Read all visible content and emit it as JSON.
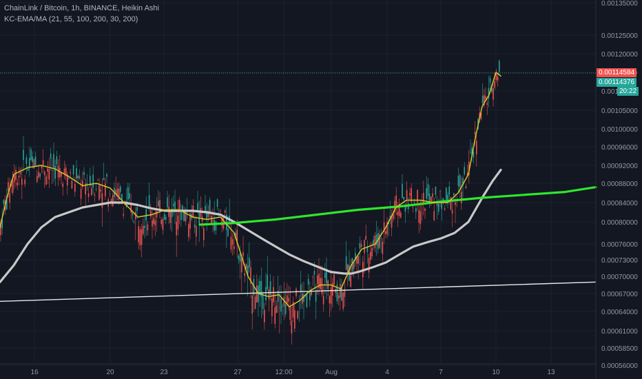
{
  "legend": {
    "title": "ChainLink / Bitcoin, 1h, BINANCE, Heikin Ashi",
    "indicator": "KC-EMA/MA (21, 55, 100, 200, 30, 200)"
  },
  "price_labels": {
    "last_price": "0.00114584",
    "indicator_value": "0.00114376",
    "countdown": "20:22"
  },
  "colors": {
    "background": "#131722",
    "grid": "#1e2230",
    "up_candle": "#26a69a",
    "down_candle": "#ef5350",
    "ema_fast": "#d4c42b",
    "ma_100": "#c8c8c8",
    "ma_200": "#2ee62e",
    "trendline": "#e8e8e8",
    "last_price_badge": "#ef5350",
    "indicator_badge": "#26a69a"
  },
  "chart_data": {
    "type": "candlestick",
    "symbol": "ChainLink / Bitcoin",
    "interval": "1h",
    "exchange": "BINANCE",
    "style": "Heikin Ashi",
    "y_ticks": [
      "0.00135000",
      "0.00125000",
      "0.00120000",
      "0.00115000",
      "0.00110000",
      "0.00105000",
      "0.00100000",
      "0.00096000",
      "0.00092000",
      "0.00088000",
      "0.00084000",
      "0.00080000",
      "0.00076000",
      "0.00073000",
      "0.00070000",
      "0.00067000",
      "0.00064000",
      "0.00061000",
      "0.00058500",
      "0.00056000"
    ],
    "x_ticks": [
      "16",
      "20",
      "23",
      "27",
      "12:00",
      "Aug",
      "4",
      "7",
      "10",
      "13"
    ],
    "price_range": [
      "0.00056",
      "0.00135"
    ],
    "grid": true,
    "ema_fast": [
      [
        0,
        0.00079
      ],
      [
        10,
        0.00085
      ],
      [
        20,
        0.0009
      ],
      [
        40,
        0.000915
      ],
      [
        60,
        0.00092
      ],
      [
        80,
        0.000912
      ],
      [
        100,
        0.000895
      ],
      [
        120,
        0.000875
      ],
      [
        140,
        0.00088
      ],
      [
        160,
        0.00087
      ],
      [
        180,
        0.00084
      ],
      [
        200,
        0.00081
      ],
      [
        220,
        0.000815
      ],
      [
        240,
        0.000825
      ],
      [
        260,
        0.000825
      ],
      [
        280,
        0.00081
      ],
      [
        300,
        0.000805
      ],
      [
        320,
        0.00081
      ],
      [
        340,
        0.00078
      ],
      [
        360,
        0.0007
      ],
      [
        375,
        0.00067
      ],
      [
        390,
        0.000665
      ],
      [
        405,
        0.000668
      ],
      [
        420,
        0.000648
      ],
      [
        435,
        0.000658
      ],
      [
        450,
        0.000675
      ],
      [
        465,
        0.000685
      ],
      [
        480,
        0.000685
      ],
      [
        495,
        0.000678
      ],
      [
        510,
        0.00072
      ],
      [
        525,
        0.00075
      ],
      [
        545,
        0.00076
      ],
      [
        560,
        0.00079
      ],
      [
        575,
        0.00083
      ],
      [
        590,
        0.000845
      ],
      [
        610,
        0.000845
      ],
      [
        630,
        0.00084
      ],
      [
        650,
        0.00084
      ],
      [
        665,
        0.00086
      ],
      [
        680,
        0.0009
      ],
      [
        690,
        0.00098
      ],
      [
        700,
        0.00106
      ],
      [
        710,
        0.00109
      ],
      [
        720,
        0.00115
      ],
      [
        727,
        0.00114
      ]
    ],
    "ma_100": [
      [
        0,
        0.00069
      ],
      [
        20,
        0.00072
      ],
      [
        40,
        0.00076
      ],
      [
        60,
        0.00079
      ],
      [
        80,
        0.00081
      ],
      [
        100,
        0.00082
      ],
      [
        120,
        0.00083
      ],
      [
        140,
        0.000835
      ],
      [
        160,
        0.00084
      ],
      [
        180,
        0.00084
      ],
      [
        200,
        0.000835
      ],
      [
        220,
        0.000828
      ],
      [
        240,
        0.000823
      ],
      [
        260,
        0.000823
      ],
      [
        280,
        0.000823
      ],
      [
        300,
        0.00082
      ],
      [
        320,
        0.000815
      ],
      [
        340,
        0.0008
      ],
      [
        360,
        0.000785
      ],
      [
        380,
        0.00077
      ],
      [
        400,
        0.000755
      ],
      [
        420,
        0.00074
      ],
      [
        440,
        0.000728
      ],
      [
        460,
        0.000718
      ],
      [
        480,
        0.000708
      ],
      [
        500,
        0.000705
      ],
      [
        510,
        0.000705
      ],
      [
        520,
        0.000708
      ],
      [
        540,
        0.000716
      ],
      [
        560,
        0.000725
      ],
      [
        580,
        0.00074
      ],
      [
        600,
        0.000755
      ],
      [
        620,
        0.000763
      ],
      [
        640,
        0.00077
      ],
      [
        660,
        0.00078
      ],
      [
        680,
        0.0008
      ],
      [
        700,
        0.00085
      ],
      [
        715,
        0.000885
      ],
      [
        727,
        0.00091
      ]
    ],
    "ma_200": [
      [
        290,
        0.000795
      ],
      [
        340,
        0.000798
      ],
      [
        400,
        0.000805
      ],
      [
        460,
        0.000815
      ],
      [
        520,
        0.000825
      ],
      [
        580,
        0.000832
      ],
      [
        640,
        0.000842
      ],
      [
        700,
        0.00085
      ],
      [
        760,
        0.000856
      ],
      [
        820,
        0.000862
      ],
      [
        865,
        0.000872
      ]
    ],
    "trendline": [
      [
        0,
        0.000657
      ],
      [
        865,
        0.00069
      ]
    ]
  }
}
